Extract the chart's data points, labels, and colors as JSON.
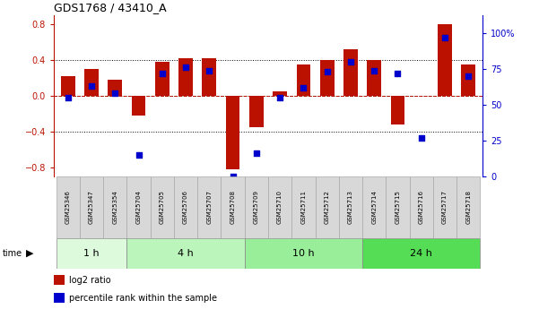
{
  "title": "GDS1768 / 43410_A",
  "samples": [
    "GSM25346",
    "GSM25347",
    "GSM25354",
    "GSM25704",
    "GSM25705",
    "GSM25706",
    "GSM25707",
    "GSM25708",
    "GSM25709",
    "GSM25710",
    "GSM25711",
    "GSM25712",
    "GSM25713",
    "GSM25714",
    "GSM25715",
    "GSM25716",
    "GSM25717",
    "GSM25718"
  ],
  "log2_ratio": [
    0.22,
    0.3,
    0.18,
    -0.22,
    0.38,
    0.42,
    0.42,
    -0.82,
    -0.35,
    0.05,
    0.35,
    0.4,
    0.52,
    0.4,
    -0.32,
    0.0,
    0.8,
    0.35
  ],
  "percentile": [
    55,
    63,
    58,
    15,
    72,
    76,
    74,
    0,
    16,
    55,
    62,
    73,
    80,
    74,
    72,
    27,
    97,
    70
  ],
  "groups": [
    {
      "label": "1 h",
      "start": 0,
      "end": 3,
      "color": "#ddfadd"
    },
    {
      "label": "4 h",
      "start": 3,
      "end": 8,
      "color": "#bbf5bb"
    },
    {
      "label": "10 h",
      "start": 8,
      "end": 13,
      "color": "#99ee99"
    },
    {
      "label": "24 h",
      "start": 13,
      "end": 18,
      "color": "#55dd55"
    }
  ],
  "bar_color": "#bb1100",
  "dot_color": "#0000cc",
  "ylim_left": [
    -0.9,
    0.9
  ],
  "ylim_right": [
    0,
    112.5
  ],
  "yticks_left": [
    -0.8,
    -0.4,
    0.0,
    0.4,
    0.8
  ],
  "yticks_right": [
    0,
    25,
    50,
    75,
    100
  ],
  "yticklabels_right": [
    "0",
    "25",
    "50",
    "75",
    "100%"
  ],
  "hlines": [
    -0.4,
    0.0,
    0.4
  ],
  "label_bg": "#d8d8d8"
}
